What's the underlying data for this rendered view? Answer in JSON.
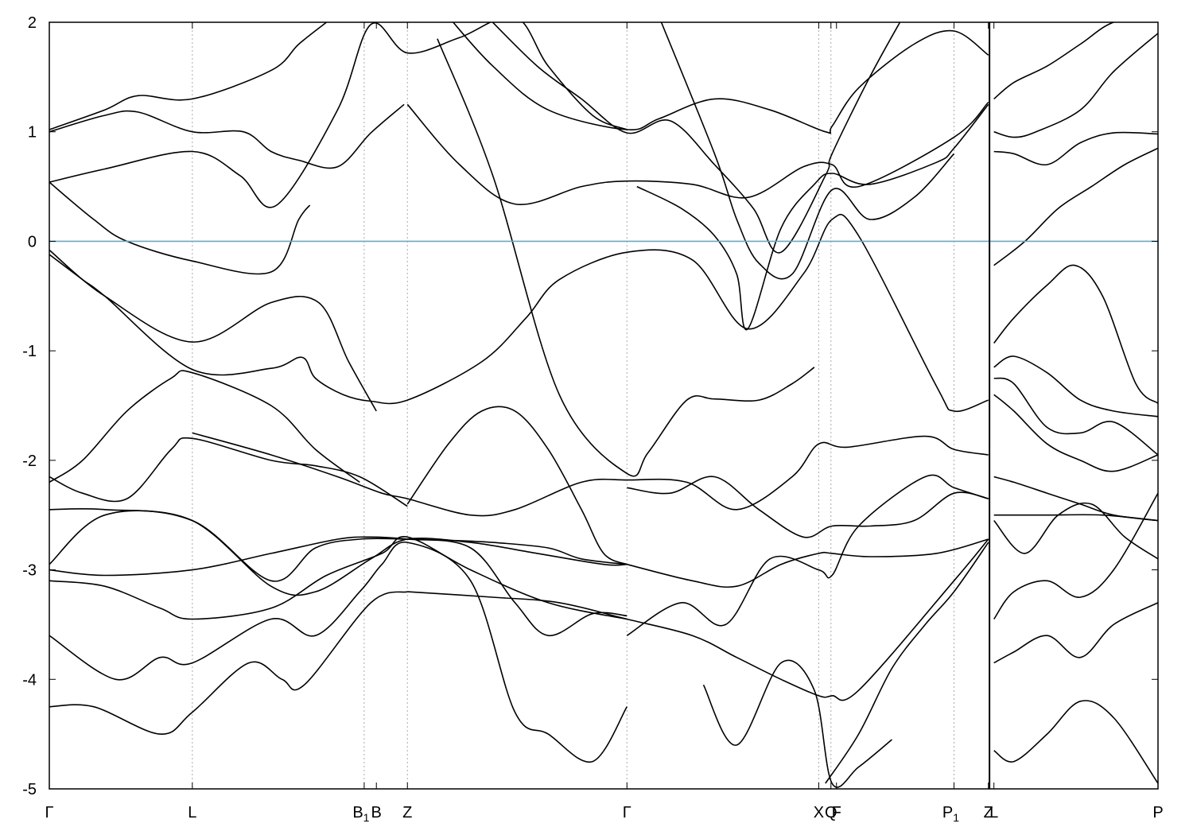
{
  "chart_data": {
    "type": "line",
    "title": "",
    "xlabel": "",
    "ylabel": "",
    "ylim": [
      -5,
      2
    ],
    "y_ticks": [
      {
        "value": 2,
        "label": "2"
      },
      {
        "value": 1,
        "label": "1"
      },
      {
        "value": 0,
        "label": "0"
      },
      {
        "value": -1,
        "label": "-1"
      },
      {
        "value": -2,
        "label": "-2"
      },
      {
        "value": -3,
        "label": "-3"
      },
      {
        "value": -4,
        "label": "-4"
      },
      {
        "value": -5,
        "label": "-5"
      }
    ],
    "xlim": [
      0,
      1
    ],
    "k_points": [
      {
        "pos": 0.0,
        "label": "Γ",
        "sub": ""
      },
      {
        "pos": 0.129,
        "label": "L",
        "sub": ""
      },
      {
        "pos": 0.284,
        "label": "B",
        "sub": "1"
      },
      {
        "pos": 0.295,
        "label": "B",
        "sub": ""
      },
      {
        "pos": 0.323,
        "label": "Z",
        "sub": ""
      },
      {
        "pos": 0.521,
        "label": "Γ",
        "sub": ""
      },
      {
        "pos": 0.694,
        "label": "X",
        "sub": ""
      },
      {
        "pos": 0.705,
        "label": "Q",
        "sub": ""
      },
      {
        "pos": 0.71,
        "label": "F",
        "sub": ""
      },
      {
        "pos": 0.816,
        "label": "P",
        "sub": "1"
      },
      {
        "pos": 0.847,
        "label": "Z",
        "sub": ""
      },
      {
        "pos": 0.852,
        "label": "L",
        "sub": ""
      },
      {
        "pos": 1.0,
        "label": "P",
        "sub": ""
      }
    ],
    "dashed_lines": [
      0.129,
      0.284,
      0.323,
      0.521,
      0.694,
      0.705,
      0.816
    ],
    "path_break": 0.848,
    "fermi_level": 0,
    "colors": {
      "bands": "#000000",
      "fermi": "#5aaed3",
      "grid": "#aaaaaa"
    },
    "grid": "vertical dashed at high-symmetry points",
    "legend": "none",
    "series": [
      {
        "x": [
          0,
          0.05,
          0.129,
          0.2,
          0.243,
          0.27,
          0.295
        ],
        "y": [
          -0.08,
          -0.5,
          -0.92,
          -0.56,
          -0.56,
          -1.1,
          -1.55
        ]
      },
      {
        "x": [
          0,
          0.04,
          0.07,
          0.129,
          0.2,
          0.225,
          0.235
        ],
        "y": [
          0.54,
          0.2,
          0.0,
          -0.18,
          -0.28,
          0.2,
          0.33
        ]
      },
      {
        "x": [
          0,
          0.05,
          0.129,
          0.172,
          0.205,
          0.26,
          0.29,
          0.323,
          0.37,
          0.42,
          0.45,
          0.49,
          0.521
        ],
        "y": [
          0.54,
          0.66,
          0.82,
          0.6,
          0.33,
          1.2,
          1.98,
          1.72,
          1.86,
          2.05,
          1.6,
          1.15,
          1.02
        ]
      },
      {
        "x": [
          0,
          0.03,
          0.05,
          0.129,
          0.2,
          0.228,
          0.24,
          0.265,
          0.29,
          0.323,
          0.39,
          0.43,
          0.46,
          0.521,
          0.58,
          0.63,
          0.68,
          0.706,
          0.73,
          0.8,
          0.816,
          0.847
        ],
        "y": [
          -0.12,
          -0.35,
          -0.5,
          -1.17,
          -1.16,
          -1.06,
          -1.25,
          -1.4,
          -1.46,
          -1.45,
          -1.1,
          -0.7,
          -0.35,
          -0.1,
          -0.17,
          -0.8,
          -0.3,
          0.2,
          0.05,
          -1.32,
          -1.55,
          -1.45
        ]
      },
      {
        "x": [
          0,
          0.05,
          0.08,
          0.129,
          0.175,
          0.2,
          0.225,
          0.26,
          0.29,
          0.32
        ],
        "y": [
          1.0,
          1.15,
          1.18,
          1.0,
          1.0,
          0.82,
          0.74,
          0.68,
          0.99,
          1.25
        ]
      },
      {
        "x": [
          0.323,
          0.37,
          0.42,
          0.48,
          0.521,
          0.58,
          0.63,
          0.68,
          0.706,
          0.73,
          0.816,
          0.847
        ],
        "y": [
          1.25,
          0.7,
          0.34,
          0.5,
          0.55,
          0.52,
          0.4,
          0.68,
          0.7,
          0.5,
          0.95,
          1.27
        ]
      },
      {
        "x": [
          0,
          0.05,
          0.08,
          0.129,
          0.2,
          0.225,
          0.25
        ],
        "y": [
          1.02,
          1.2,
          1.33,
          1.3,
          1.56,
          1.8,
          2.0
        ]
      },
      {
        "x": [
          0.36,
          0.4,
          0.45,
          0.521,
          0.55,
          0.6,
          0.65,
          0.7,
          0.706,
          0.73,
          0.78,
          0.816,
          0.847
        ],
        "y": [
          2.05,
          1.6,
          1.2,
          1.02,
          1.12,
          1.3,
          1.2,
          1.0,
          1.05,
          1.4,
          1.8,
          1.92,
          1.7
        ]
      },
      {
        "x": [
          0.395,
          0.44,
          0.48,
          0.521,
          0.56,
          0.6,
          0.635,
          0.66,
          0.7,
          0.706,
          0.74,
          0.77
        ],
        "y": [
          2.05,
          1.6,
          1.3,
          0.99,
          1.1,
          0.7,
          0.3,
          -0.1,
          0.6,
          0.8,
          1.5,
          2.05
        ]
      },
      {
        "x": [
          0.55,
          0.6,
          0.62,
          0.64,
          0.67,
          0.706,
          0.74,
          0.78,
          0.816
        ],
        "y": [
          2.05,
          0.8,
          0.2,
          -0.2,
          -0.3,
          0.47,
          0.2,
          0.4,
          0.8
        ]
      },
      {
        "x": [
          0.53,
          0.57,
          0.6,
          0.62,
          0.63,
          0.66,
          0.69,
          0.706,
          0.74,
          0.8,
          0.816,
          0.847
        ],
        "y": [
          0.5,
          0.3,
          0.05,
          -0.3,
          -0.8,
          0.12,
          0.52,
          0.62,
          0.52,
          0.72,
          0.85,
          1.25
        ]
      },
      {
        "x": [
          0.35,
          0.4,
          0.46,
          0.521,
          0.54,
          0.575,
          0.6,
          0.64,
          0.67,
          0.69
        ],
        "y": [
          1.85,
          0.6,
          -1.4,
          -2.12,
          -1.93,
          -1.45,
          -1.44,
          -1.45,
          -1.3,
          -1.15
        ]
      },
      {
        "x": [
          0,
          0.03,
          0.07,
          0.11,
          0.129,
          0.2,
          0.24,
          0.28
        ],
        "y": [
          -2.2,
          -2.0,
          -1.55,
          -1.25,
          -1.2,
          -1.5,
          -1.9,
          -2.2
        ]
      },
      {
        "x": [
          0,
          0.03,
          0.07,
          0.11,
          0.129,
          0.2,
          0.24,
          0.28,
          0.323
        ],
        "y": [
          -2.15,
          -2.3,
          -2.35,
          -1.9,
          -1.8,
          -2.0,
          -2.05,
          -2.15,
          -2.42
        ]
      },
      {
        "x": [
          0.129,
          0.2,
          0.26,
          0.3,
          0.323,
          0.38,
          0.42,
          0.48,
          0.521,
          0.575,
          0.62,
          0.67,
          0.694,
          0.72,
          0.79,
          0.816,
          0.847
        ],
        "y": [
          -1.75,
          -1.95,
          -2.15,
          -2.3,
          -2.35,
          -2.5,
          -2.45,
          -2.2,
          -2.18,
          -2.2,
          -2.45,
          -2.15,
          -1.85,
          -1.88,
          -1.78,
          -1.9,
          -1.95
        ]
      },
      {
        "x": [
          0.323,
          0.36,
          0.39,
          0.42,
          0.45,
          0.48,
          0.5,
          0.521
        ],
        "y": [
          -2.4,
          -1.85,
          -1.55,
          -1.55,
          -1.9,
          -2.45,
          -2.85,
          -2.95
        ]
      },
      {
        "x": [
          0,
          0.05,
          0.129,
          0.2,
          0.24,
          0.29,
          0.323,
          0.38,
          0.44,
          0.5,
          0.521
        ],
        "y": [
          -2.45,
          -2.45,
          -2.55,
          -3.15,
          -3.2,
          -2.9,
          -2.72,
          -2.75,
          -2.85,
          -2.95,
          -2.95
        ]
      },
      {
        "x": [
          0,
          0.05,
          0.129,
          0.2,
          0.24,
          0.28,
          0.323,
          0.36,
          0.4,
          0.45,
          0.48,
          0.521
        ],
        "y": [
          -2.95,
          -2.5,
          -2.55,
          -3.1,
          -2.8,
          -2.72,
          -2.72,
          -2.73,
          -2.75,
          -2.8,
          -2.9,
          -2.95
        ]
      },
      {
        "x": [
          0,
          0.05,
          0.129,
          0.2,
          0.26,
          0.29,
          0.323,
          0.38,
          0.42,
          0.45,
          0.49,
          0.521
        ],
        "y": [
          -3.0,
          -3.05,
          -3.0,
          -2.85,
          -2.72,
          -2.7,
          -2.72,
          -2.8,
          -3.3,
          -3.6,
          -3.4,
          -3.42
        ]
      },
      {
        "x": [
          0,
          0.05,
          0.1,
          0.129,
          0.2,
          0.25,
          0.3,
          0.323,
          0.38,
          0.45,
          0.521
        ],
        "y": [
          -3.1,
          -3.15,
          -3.35,
          -3.45,
          -3.35,
          -3.05,
          -2.85,
          -2.7,
          -3.0,
          -3.3,
          -3.45
        ]
      },
      {
        "x": [
          0,
          0.06,
          0.1,
          0.129,
          0.2,
          0.24,
          0.28,
          0.3,
          0.323,
          0.38,
          0.42,
          0.45,
          0.49,
          0.521
        ],
        "y": [
          -3.6,
          -4.0,
          -3.8,
          -3.85,
          -3.45,
          -3.6,
          -3.2,
          -2.95,
          -2.75,
          -3.1,
          -4.3,
          -4.5,
          -4.75,
          -4.25
        ]
      },
      {
        "x": [
          0,
          0.04,
          0.1,
          0.129,
          0.18,
          0.21,
          0.23,
          0.29,
          0.323
        ],
        "y": [
          -4.25,
          -4.25,
          -4.5,
          -4.3,
          -3.85,
          -4.0,
          -4.05,
          -3.3,
          -3.2
        ]
      },
      {
        "x": [
          0.323,
          0.4,
          0.46,
          0.521,
          0.58,
          0.62,
          0.66,
          0.694,
          0.706,
          0.73,
          0.816,
          0.847
        ],
        "y": [
          -3.2,
          -3.25,
          -3.3,
          -3.45,
          -3.6,
          -3.8,
          -4.0,
          -4.15,
          -4.15,
          -4.1,
          -3.1,
          -2.72
        ]
      },
      {
        "x": [
          0.521,
          0.58,
          0.62,
          0.66,
          0.694,
          0.706,
          0.74,
          0.8,
          0.847
        ],
        "y": [
          -2.95,
          -3.1,
          -3.15,
          -2.95,
          -2.85,
          -2.85,
          -2.88,
          -2.85,
          -2.72
        ]
      },
      {
        "x": [
          0.521,
          0.56,
          0.6,
          0.64,
          0.68,
          0.706,
          0.74,
          0.78,
          0.816,
          0.847
        ],
        "y": [
          -2.25,
          -2.3,
          -2.15,
          -2.45,
          -2.7,
          -2.6,
          -2.6,
          -2.55,
          -2.3,
          -2.35
        ]
      },
      {
        "x": [
          0.521,
          0.57,
          0.61,
          0.65,
          0.694,
          0.706,
          0.73,
          0.79,
          0.816,
          0.847
        ],
        "y": [
          -3.6,
          -3.3,
          -3.5,
          -2.9,
          -3.0,
          -3.05,
          -2.6,
          -2.15,
          -2.25,
          -2.35
        ]
      },
      {
        "x": [
          0.7,
          0.73,
          0.76,
          0.79,
          0.816,
          0.847
        ],
        "y": [
          -4.95,
          -4.5,
          -3.9,
          -3.5,
          -3.2,
          -2.75
        ]
      },
      {
        "x": [
          0.59,
          0.62,
          0.66,
          0.69,
          0.706,
          0.73,
          0.76
        ],
        "y": [
          -4.05,
          -4.6,
          -3.85,
          -4.1,
          -4.95,
          -4.8,
          -4.55
        ]
      },
      {
        "x": [
          0.852,
          0.87,
          0.9,
          0.93,
          0.96,
          1.0
        ],
        "y": [
          1.3,
          1.45,
          1.6,
          1.8,
          2.0,
          2.05
        ]
      },
      {
        "x": [
          0.852,
          0.87,
          0.89,
          0.93,
          0.96,
          1.0
        ],
        "y": [
          1.0,
          0.95,
          1.0,
          1.2,
          1.55,
          1.9
        ]
      },
      {
        "x": [
          0.852,
          0.87,
          0.9,
          0.93,
          0.96,
          1.0
        ],
        "y": [
          0.82,
          0.8,
          0.7,
          0.9,
          0.99,
          0.98
        ]
      },
      {
        "x": [
          0.852,
          0.88,
          0.91,
          0.94,
          0.97,
          1.0
        ],
        "y": [
          -0.22,
          0.0,
          0.3,
          0.5,
          0.7,
          0.85
        ]
      },
      {
        "x": [
          0.852,
          0.87,
          0.9,
          0.925,
          0.95,
          0.98,
          1.0
        ],
        "y": [
          -0.93,
          -0.7,
          -0.4,
          -0.22,
          -0.5,
          -1.3,
          -1.48
        ]
      },
      {
        "x": [
          0.852,
          0.87,
          0.9,
          0.93,
          0.96,
          1.0
        ],
        "y": [
          -1.15,
          -1.05,
          -1.2,
          -1.45,
          -1.55,
          -1.6
        ]
      },
      {
        "x": [
          0.852,
          0.87,
          0.9,
          0.93,
          0.96,
          1.0
        ],
        "y": [
          -1.25,
          -1.3,
          -1.7,
          -1.75,
          -1.65,
          -1.95
        ]
      },
      {
        "x": [
          0.852,
          0.87,
          0.9,
          0.93,
          0.96,
          1.0
        ],
        "y": [
          -1.4,
          -1.55,
          -1.85,
          -2.0,
          -2.1,
          -1.95
        ]
      },
      {
        "x": [
          0.852,
          0.87,
          0.9,
          0.93,
          0.96,
          1.0
        ],
        "y": [
          -2.15,
          -2.2,
          -2.3,
          -2.4,
          -2.5,
          -2.55
        ]
      },
      {
        "x": [
          0.852,
          0.9,
          0.95,
          1.0
        ],
        "y": [
          -2.5,
          -2.5,
          -2.5,
          -2.55
        ]
      },
      {
        "x": [
          0.852,
          0.88,
          0.91,
          0.94,
          0.97,
          1.0
        ],
        "y": [
          -2.55,
          -2.85,
          -2.5,
          -2.4,
          -2.7,
          -2.9
        ]
      },
      {
        "x": [
          0.852,
          0.87,
          0.9,
          0.93,
          0.96,
          1.0
        ],
        "y": [
          -3.45,
          -3.2,
          -3.1,
          -3.25,
          -3.0,
          -2.3
        ]
      },
      {
        "x": [
          0.852,
          0.87,
          0.9,
          0.93,
          0.96,
          1.0
        ],
        "y": [
          -3.85,
          -3.75,
          -3.6,
          -3.8,
          -3.5,
          -3.3
        ]
      },
      {
        "x": [
          0.852,
          0.87,
          0.9,
          0.93,
          0.96,
          1.0
        ],
        "y": [
          -4.65,
          -4.75,
          -4.5,
          -4.2,
          -4.35,
          -4.95
        ]
      }
    ]
  }
}
